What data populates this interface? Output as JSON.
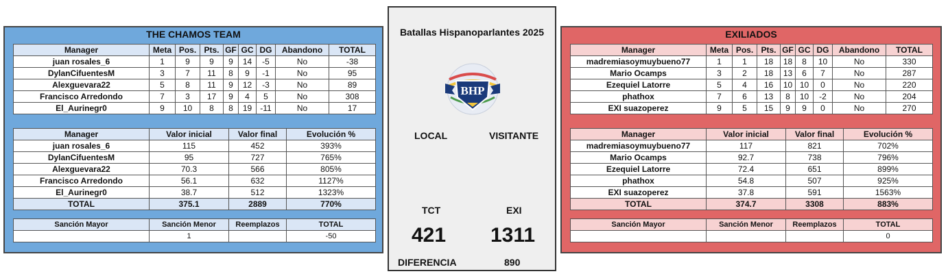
{
  "event_title": "Batallas Hispanoparlantes 2025",
  "logo_text": "BHP",
  "center": {
    "local_label": "LOCAL",
    "visitor_label": "VISITANTE",
    "local_abbr": "TCT",
    "visitor_abbr": "EXI",
    "local_score": "421",
    "visitor_score": "1311",
    "difference_label": "DIFERENCIA",
    "difference_value": "890"
  },
  "colors": {
    "local_panel": "#6fa8dc",
    "visitor_panel": "#e06666",
    "local_header": "#dae6f6",
    "visitor_header": "#f7d2d2"
  },
  "teams": [
    {
      "name": "THE CHAMOS TEAM",
      "standings_headers": [
        "Manager",
        "Meta",
        "Pos.",
        "Pts.",
        "GF",
        "GC",
        "DG",
        "Abandono",
        "TOTAL"
      ],
      "standings": [
        [
          "juan rosales_6",
          "1",
          "9",
          "9",
          "9",
          "14",
          "-5",
          "No",
          "-38"
        ],
        [
          "DylanCifuentesM",
          "3",
          "7",
          "11",
          "8",
          "9",
          "-1",
          "No",
          "95"
        ],
        [
          "Alexguevara22",
          "5",
          "8",
          "11",
          "9",
          "12",
          "-3",
          "No",
          "89"
        ],
        [
          "Francisco Arredondo",
          "7",
          "3",
          "17",
          "9",
          "4",
          "5",
          "No",
          "308"
        ],
        [
          "El_Aurinegr0",
          "9",
          "10",
          "8",
          "8",
          "19",
          "-11",
          "No",
          "17"
        ]
      ],
      "value_headers": [
        "Manager",
        "Valor inicial",
        "Valor final",
        "Evolución %"
      ],
      "values": [
        [
          "juan rosales_6",
          "115",
          "452",
          "393%"
        ],
        [
          "DylanCifuentesM",
          "95",
          "727",
          "765%"
        ],
        [
          "Alexguevara22",
          "70.3",
          "566",
          "805%"
        ],
        [
          "Francisco Arredondo",
          "56.1",
          "632",
          "1127%"
        ],
        [
          "El_Aurinegr0",
          "38.7",
          "512",
          "1323%"
        ]
      ],
      "value_total": [
        "TOTAL",
        "375.1",
        "2889",
        "770%"
      ],
      "sanction_headers": [
        "Sanción Mayor",
        "Sanción Menor",
        "Reemplazos",
        "TOTAL"
      ],
      "sanction_values": [
        "",
        "1",
        "",
        "-50"
      ]
    },
    {
      "name": "EXILIADOS",
      "standings_headers": [
        "Manager",
        "Meta",
        "Pos.",
        "Pts.",
        "GF",
        "GC",
        "DG",
        "Abandono",
        "TOTAL"
      ],
      "standings": [
        [
          "madremiasoymuybueno77",
          "1",
          "1",
          "18",
          "18",
          "8",
          "10",
          "No",
          "330"
        ],
        [
          "Mario Ocamps",
          "3",
          "2",
          "18",
          "13",
          "6",
          "7",
          "No",
          "287"
        ],
        [
          "Ezequiel Latorre",
          "5",
          "4",
          "16",
          "10",
          "10",
          "0",
          "No",
          "220"
        ],
        [
          "phathox",
          "7",
          "6",
          "13",
          "8",
          "10",
          "-2",
          "No",
          "204"
        ],
        [
          "EXI suazoperez",
          "9",
          "5",
          "15",
          "9",
          "9",
          "0",
          "No",
          "270"
        ]
      ],
      "value_headers": [
        "Manager",
        "Valor inicial",
        "Valor final",
        "Evolución %"
      ],
      "values": [
        [
          "madremiasoymuybueno77",
          "117",
          "821",
          "702%"
        ],
        [
          "Mario Ocamps",
          "92.7",
          "738",
          "796%"
        ],
        [
          "Ezequiel Latorre",
          "72.4",
          "651",
          "899%"
        ],
        [
          "phathox",
          "54.8",
          "507",
          "925%"
        ],
        [
          "EXI suazoperez",
          "37.8",
          "591",
          "1563%"
        ]
      ],
      "value_total": [
        "TOTAL",
        "374.7",
        "3308",
        "883%"
      ],
      "sanction_headers": [
        "Sanción Mayor",
        "Sanción Menor",
        "Reemplazos",
        "TOTAL"
      ],
      "sanction_values": [
        "",
        "",
        "",
        "0"
      ]
    }
  ]
}
